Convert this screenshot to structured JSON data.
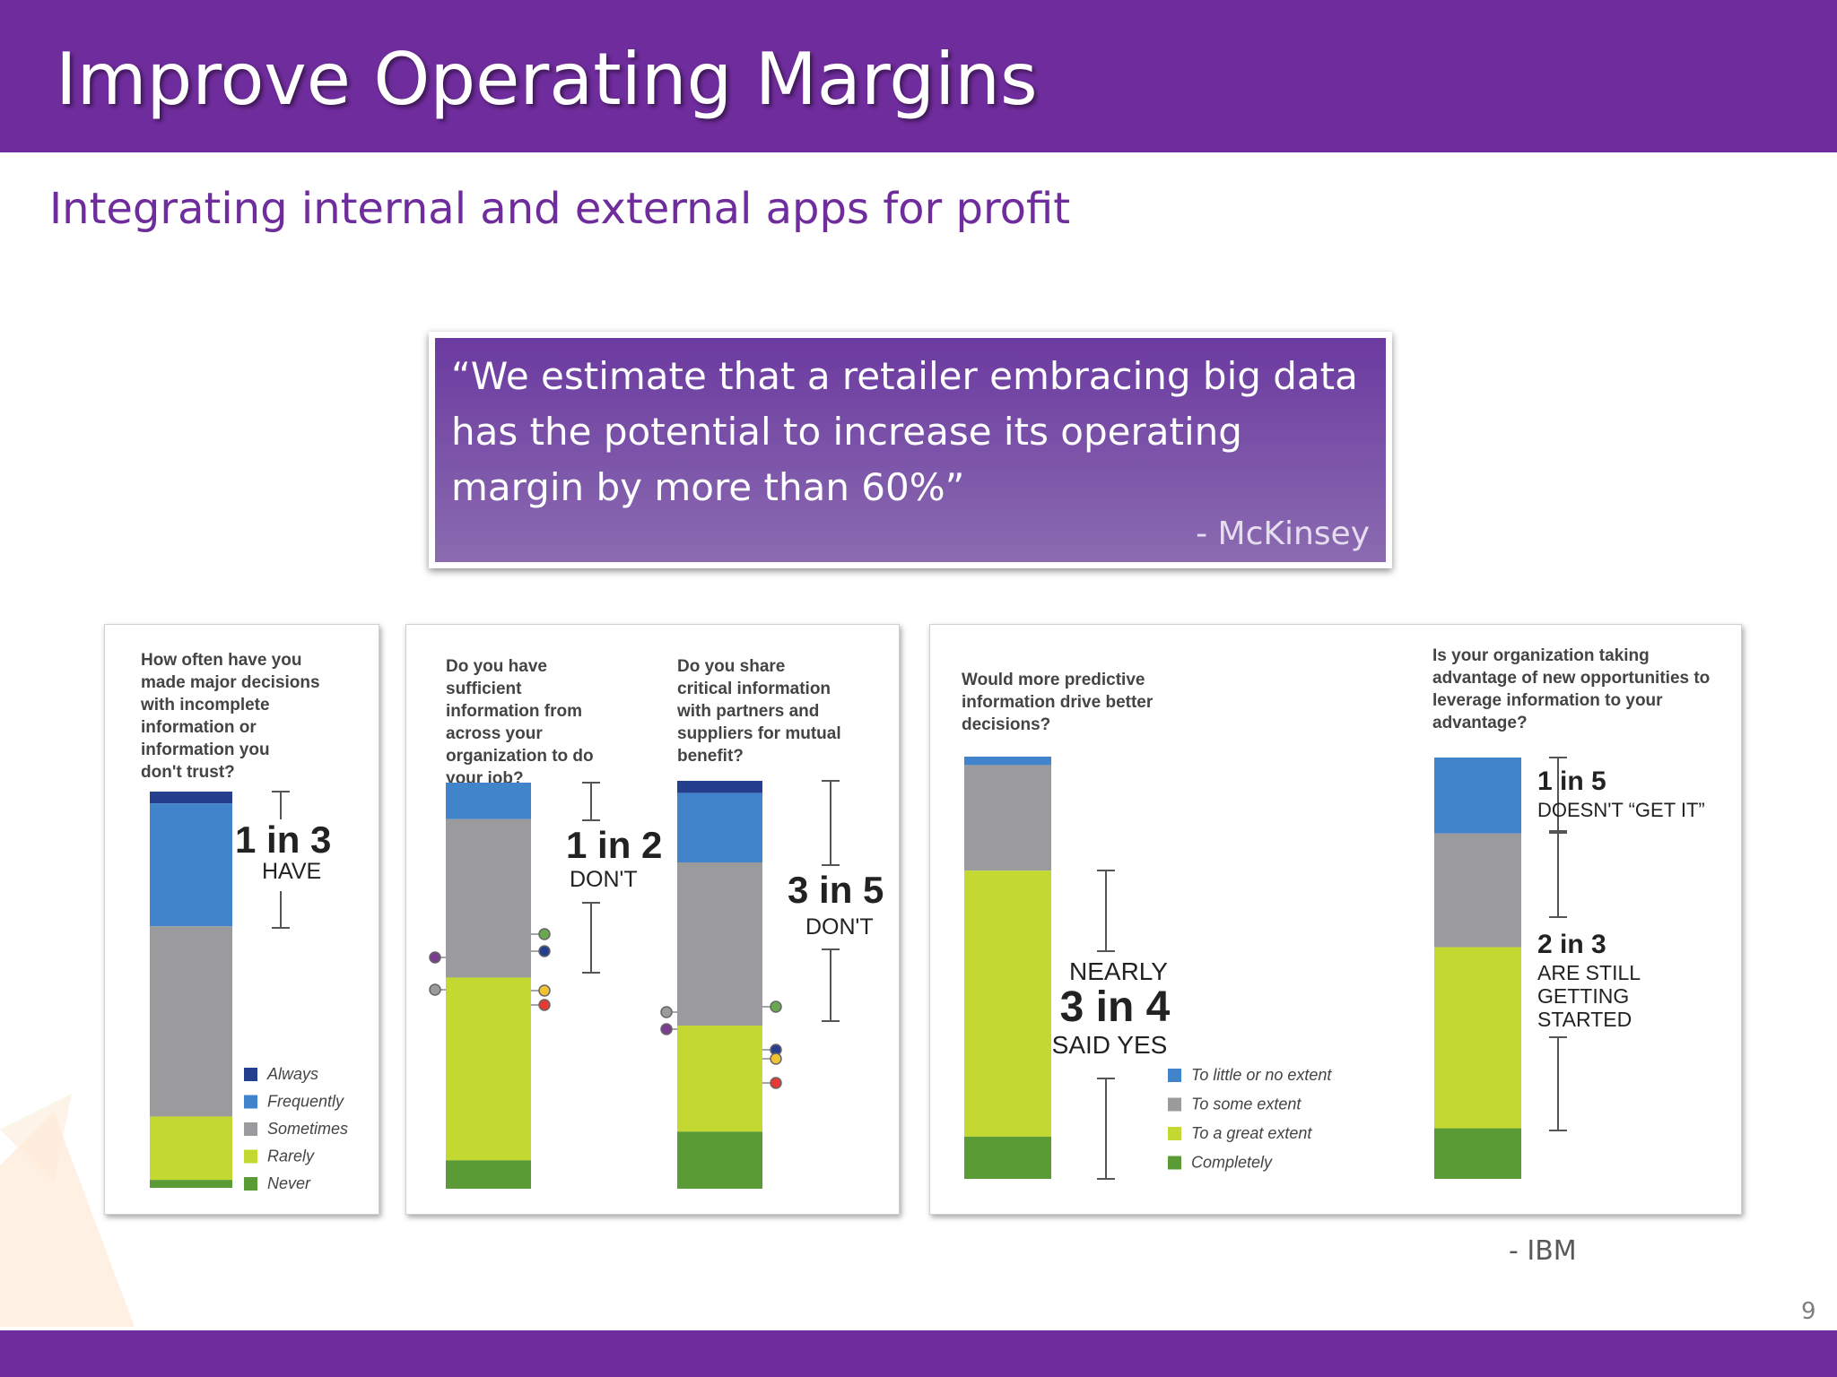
{
  "slide": {
    "title": "Improve Operating Margins",
    "subtitle": "Integrating internal and external apps for profit",
    "quote": "“We estimate that a retailer embracing big data has the potential to increase its operating margin by more than 60%”",
    "quote_source": "- McKinsey",
    "chart_source": "- IBM",
    "page_number": "9"
  },
  "colors": {
    "header": "#6f2c9c",
    "accent_text": "#6f2c9c",
    "dark_blue": "#253f8e",
    "blue": "#4184cb",
    "gray": "#9b9b9d",
    "lime": "#c3d932",
    "green": "#5b9b36"
  },
  "chart_data": [
    {
      "type": "bar",
      "stacked": true,
      "question": "How often have you made major decisions with incomplete information or information you don't trust?",
      "series": [
        {
          "name": "Always",
          "value": 3,
          "color": "#253f8e"
        },
        {
          "name": "Frequently",
          "value": 31,
          "color": "#4184cb"
        },
        {
          "name": "Sometimes",
          "value": 48,
          "color": "#9b9b9d"
        },
        {
          "name": "Rarely",
          "value": 16,
          "color": "#c3d932"
        },
        {
          "name": "Never",
          "value": 2,
          "color": "#5b9b36"
        }
      ],
      "annotation": {
        "big": "1 in 3",
        "small": "HAVE"
      },
      "legend": [
        "Always",
        "Frequently",
        "Sometimes",
        "Rarely",
        "Never"
      ]
    },
    {
      "type": "bar",
      "stacked": true,
      "question": "Do you have sufficient information from across your organization to do your job?",
      "series": [
        {
          "value": 9,
          "color": "#4184cb"
        },
        {
          "value": 39,
          "color": "#9b9b9d"
        },
        {
          "value": 45,
          "color": "#c3d932"
        },
        {
          "value": 7,
          "color": "#5b9b36"
        }
      ],
      "annotation": {
        "big": "1 in 2",
        "small": "DON'T"
      }
    },
    {
      "type": "bar",
      "stacked": true,
      "question": "Do you share critical information with partners and suppliers for mutual benefit?",
      "series": [
        {
          "value": 3,
          "color": "#253f8e"
        },
        {
          "value": 17,
          "color": "#4184cb"
        },
        {
          "value": 40,
          "color": "#9b9b9d"
        },
        {
          "value": 26,
          "color": "#c3d932"
        },
        {
          "value": 14,
          "color": "#5b9b36"
        }
      ],
      "annotation": {
        "big": "3 in 5",
        "small": "DON'T"
      }
    },
    {
      "type": "bar",
      "stacked": true,
      "question": "Would more predictive information drive better decisions?",
      "series": [
        {
          "name": "To little or no extent",
          "value": 2,
          "color": "#4184cb"
        },
        {
          "name": "To some extent",
          "value": 25,
          "color": "#9b9b9d"
        },
        {
          "name": "To a great extent",
          "value": 63,
          "color": "#c3d932"
        },
        {
          "name": "Completely",
          "value": 10,
          "color": "#5b9b36"
        }
      ],
      "annotation": {
        "top": "NEARLY",
        "big": "3 in 4",
        "small": "SAID YES"
      },
      "legend": [
        "To little or no extent",
        "To some extent",
        "To a great extent",
        "Completely"
      ]
    },
    {
      "type": "bar",
      "stacked": true,
      "question": "Is your organization taking advantage of new opportunities to leverage information to your advantage?",
      "series": [
        {
          "value": 18,
          "color": "#4184cb"
        },
        {
          "value": 27,
          "color": "#9b9b9d"
        },
        {
          "value": 43,
          "color": "#c3d932"
        },
        {
          "value": 12,
          "color": "#5b9b36"
        }
      ],
      "annotations": [
        {
          "big": "1 in 5",
          "small": "DOESN'T “GET IT”"
        },
        {
          "big": "2 in 3",
          "small": "ARE STILL GETTING STARTED"
        }
      ]
    }
  ]
}
